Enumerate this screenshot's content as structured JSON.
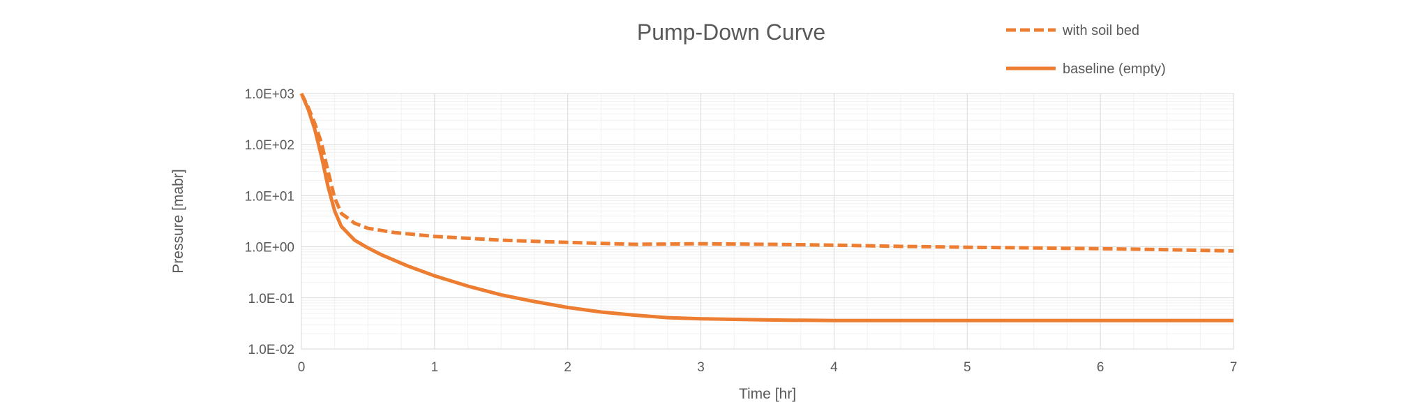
{
  "chart_data": {
    "type": "line",
    "title": "Pump-Down Curve",
    "xlabel": "Time [hr]",
    "ylabel": "Pressure [mabr]",
    "xlim": [
      0,
      7
    ],
    "ylim": [
      0.01,
      1000
    ],
    "yscale": "log",
    "grid": true,
    "legend_position": "top-right",
    "xticks": [
      0,
      1,
      2,
      3,
      4,
      5,
      6,
      7
    ],
    "xtick_labels": [
      "0",
      "1",
      "2",
      "3",
      "4",
      "5",
      "6",
      "7"
    ],
    "yticks": [
      1000,
      100,
      10,
      1,
      0.1,
      0.01
    ],
    "ytick_labels": [
      "1.0E+03",
      "1.0E+02",
      "1.0E+01",
      "1.0E+00",
      "1.0E-01",
      "1.0E-02"
    ],
    "series": [
      {
        "name": "with soil bed",
        "style": "dashed",
        "color": "#ED7D31",
        "x": [
          0,
          0.05,
          0.1,
          0.15,
          0.2,
          0.25,
          0.3,
          0.4,
          0.5,
          0.7,
          1.0,
          1.5,
          2.0,
          2.5,
          3.0,
          3.5,
          4.0,
          4.5,
          5.0,
          5.5,
          6.0,
          6.5,
          7.0
        ],
        "y": [
          1000,
          550,
          260,
          110,
          30,
          9,
          4.5,
          2.9,
          2.3,
          1.9,
          1.6,
          1.35,
          1.22,
          1.12,
          1.15,
          1.12,
          1.08,
          1.02,
          0.98,
          0.95,
          0.92,
          0.88,
          0.83
        ]
      },
      {
        "name": "baseline (empty)",
        "style": "solid",
        "color": "#ED7D31",
        "x": [
          0,
          0.05,
          0.1,
          0.15,
          0.2,
          0.25,
          0.3,
          0.4,
          0.5,
          0.6,
          0.8,
          1.0,
          1.25,
          1.5,
          1.75,
          2.0,
          2.25,
          2.5,
          2.75,
          3.0,
          3.5,
          4.0,
          5.0,
          6.0,
          7.0
        ],
        "y": [
          1000,
          500,
          200,
          60,
          15,
          5,
          2.5,
          1.35,
          0.95,
          0.7,
          0.42,
          0.27,
          0.17,
          0.115,
          0.085,
          0.065,
          0.053,
          0.046,
          0.041,
          0.039,
          0.037,
          0.036,
          0.036,
          0.036,
          0.036
        ]
      }
    ]
  }
}
